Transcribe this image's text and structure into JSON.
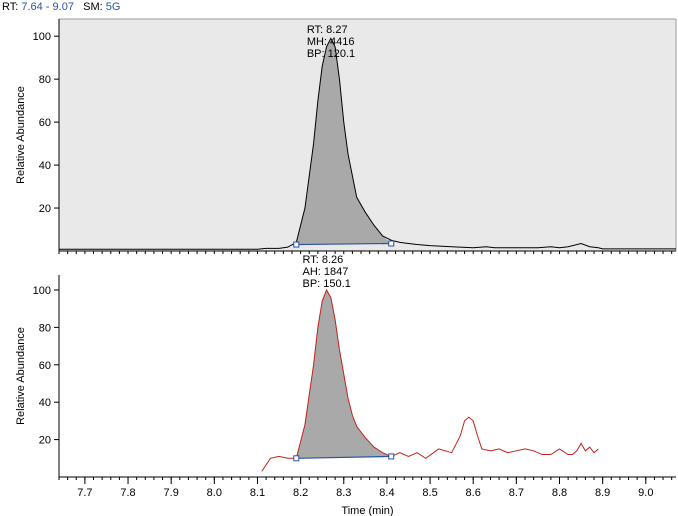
{
  "header": {
    "rt_label": "RT:",
    "rt_range": "7.64 - 9.07",
    "sm_label": "SM:",
    "sm_value": "5G"
  },
  "colors": {
    "top_background": "#e9e9e9",
    "top_trace": "#000000",
    "bottom_trace": "#c0221c",
    "peak_fill": "#a9a9a9",
    "baseline": "#2a52a6",
    "header_value": "#2a52a6"
  },
  "chart_data": [
    {
      "type": "area",
      "ylabel": "Relative Abundance",
      "xlim": [
        7.64,
        9.07
      ],
      "ylim": [
        0,
        108
      ],
      "y_ticks": [
        20,
        40,
        60,
        80,
        100
      ],
      "background": "#e9e9e9",
      "trace_color": "#000000",
      "peak_annotation": [
        "RT: 8.27",
        "MH: 4416",
        "BP: 120.1"
      ],
      "peak_start": [
        8.19,
        3
      ],
      "peak_end": [
        8.41,
        3.5
      ],
      "x": [
        7.64,
        7.9,
        8.1,
        8.12,
        8.15,
        8.17,
        8.19,
        8.21,
        8.23,
        8.24,
        8.25,
        8.26,
        8.27,
        8.28,
        8.29,
        8.3,
        8.31,
        8.32,
        8.33,
        8.35,
        8.37,
        8.39,
        8.41,
        8.43,
        8.45,
        8.47,
        8.5,
        8.55,
        8.6,
        8.63,
        8.65,
        8.7,
        8.75,
        8.78,
        8.8,
        8.82,
        8.85,
        8.87,
        8.89,
        8.9,
        9.07
      ],
      "y": [
        0.8,
        0.8,
        0.8,
        1.2,
        1.2,
        1.8,
        4,
        20,
        50,
        70,
        86,
        95,
        99,
        95,
        80,
        60,
        45,
        35,
        25,
        18,
        12,
        7,
        5,
        4,
        3.5,
        3,
        2.5,
        2,
        1.5,
        2,
        1.5,
        1.5,
        1.5,
        2,
        1.5,
        2,
        3.5,
        2,
        1.5,
        1,
        1
      ]
    },
    {
      "type": "area",
      "xlabel": "Time (min)",
      "ylabel": "Relative Abundance",
      "xlim": [
        7.64,
        9.07
      ],
      "ylim": [
        0,
        108
      ],
      "y_ticks": [
        20,
        40,
        60,
        80,
        100
      ],
      "x_ticks": [
        7.7,
        7.8,
        7.9,
        8.0,
        8.1,
        8.2,
        8.3,
        8.4,
        8.5,
        8.6,
        8.7,
        8.8,
        8.9,
        9.0
      ],
      "background": "#ffffff",
      "trace_color": "#c0221c",
      "peak_annotation": [
        "RT: 8.26",
        "AH: 1847",
        "BP: 150.1"
      ],
      "peak_start": [
        8.19,
        10
      ],
      "peak_end": [
        8.41,
        11
      ],
      "x": [
        8.11,
        8.13,
        8.15,
        8.17,
        8.19,
        8.21,
        8.23,
        8.24,
        8.25,
        8.26,
        8.27,
        8.28,
        8.29,
        8.3,
        8.31,
        8.32,
        8.33,
        8.35,
        8.37,
        8.39,
        8.41,
        8.43,
        8.45,
        8.47,
        8.49,
        8.52,
        8.55,
        8.57,
        8.58,
        8.59,
        8.6,
        8.61,
        8.62,
        8.64,
        8.66,
        8.68,
        8.7,
        8.72,
        8.74,
        8.76,
        8.78,
        8.8,
        8.82,
        8.83,
        8.84,
        8.85,
        8.86,
        8.87,
        8.88,
        8.89
      ],
      "y": [
        3,
        10,
        11,
        10,
        10,
        28,
        60,
        80,
        94,
        100,
        96,
        84,
        68,
        55,
        42,
        33,
        27,
        21,
        16,
        13,
        11,
        13,
        11,
        13,
        10,
        15,
        13,
        22,
        30,
        32,
        30,
        22,
        15,
        14,
        15,
        13,
        14,
        15,
        14,
        12,
        12,
        15,
        12,
        12,
        14,
        18,
        14,
        16,
        13,
        15
      ]
    }
  ]
}
